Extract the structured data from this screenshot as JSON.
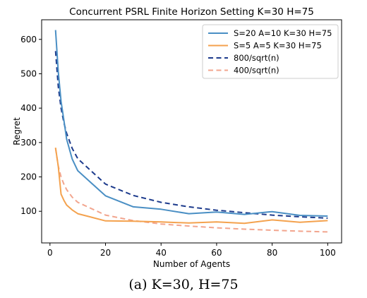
{
  "caption": "(a) K=30, H=75",
  "chart_data": {
    "type": "line",
    "title": "Concurrent PSRL Finite Horizon Setting K=30 H=75",
    "xlabel": "Number of Agents",
    "ylabel": "Regret",
    "xlim": [
      -3,
      105
    ],
    "ylim": [
      8,
      657
    ],
    "xticks": [
      0,
      20,
      40,
      60,
      80,
      100
    ],
    "yticks": [
      100,
      200,
      300,
      400,
      500,
      600
    ],
    "grid": false,
    "legend_position": "top-right",
    "series": [
      {
        "name": "S=20 A=10 K=30 H=75",
        "color": "#4a8fc4",
        "style": "solid",
        "x": [
          2,
          3,
          4,
          5,
          6,
          8,
          10,
          20,
          30,
          40,
          50,
          60,
          70,
          80,
          90,
          100
        ],
        "y": [
          627,
          505,
          420,
          365,
          310,
          252,
          218,
          145,
          113,
          106,
          93,
          98,
          91,
          99,
          88,
          86
        ]
      },
      {
        "name": "S=5 A=5 K=30 H=75",
        "color": "#f4a24e",
        "style": "solid",
        "x": [
          2,
          3,
          4,
          5,
          6,
          8,
          10,
          20,
          30,
          40,
          50,
          60,
          70,
          80,
          90,
          100
        ],
        "y": [
          285,
          230,
          150,
          132,
          118,
          104,
          93,
          72,
          71,
          69,
          66,
          69,
          65,
          75,
          68,
          73
        ]
      },
      {
        "name": "800/sqrt(n)",
        "color": "#1c3a8c",
        "style": "dashed",
        "x": [
          2,
          3,
          4,
          5,
          6,
          8,
          10,
          20,
          30,
          40,
          50,
          60,
          70,
          80,
          90,
          100
        ],
        "y": [
          566,
          462,
          400,
          358,
          327,
          283,
          253,
          179,
          146,
          126,
          113,
          103,
          96,
          89,
          84,
          80
        ]
      },
      {
        "name": "400/sqrt(n)",
        "color": "#f2a58e",
        "style": "dashed",
        "x": [
          2,
          3,
          4,
          5,
          6,
          8,
          10,
          20,
          30,
          40,
          50,
          60,
          70,
          80,
          90,
          100
        ],
        "y": [
          283,
          231,
          200,
          179,
          163,
          141,
          126,
          89,
          73,
          63,
          57,
          52,
          48,
          45,
          42,
          40
        ]
      }
    ]
  }
}
